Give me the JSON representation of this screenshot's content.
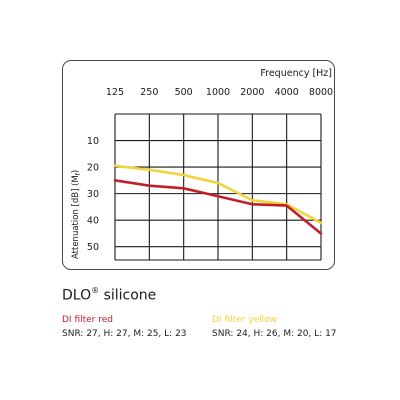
{
  "product": {
    "name": "DLO",
    "mark": "®",
    "material": "silicone"
  },
  "legend": [
    {
      "name": "DI filter red",
      "rating": "SNR: 27, H: 27, M: 25, L: 23",
      "color": "#c0202a"
    },
    {
      "name": "DI filter yellow",
      "rating": "SNR: 24, H: 26, M: 20, L: 17",
      "color": "#f2d43a"
    }
  ],
  "chart_data": {
    "type": "line",
    "xlabel": "Frequency [Hz]",
    "ylabel": "Attenuation [dB] (M",
    "ylabel_sub": "f",
    "ylabel_end": ")",
    "x": [
      "125",
      "250",
      "500",
      "1000",
      "2000",
      "4000",
      "8000"
    ],
    "yticks": [
      "10",
      "20",
      "30",
      "40",
      "50"
    ],
    "ylim": [
      0,
      55
    ],
    "y_inverted": true,
    "grid": true,
    "series": [
      {
        "name": "DI filter yellow",
        "color": "#f2d43a",
        "values": [
          19.5,
          21,
          23,
          26,
          32.5,
          34,
          41
        ]
      },
      {
        "name": "DI filter red",
        "color": "#c0202a",
        "values": [
          25,
          27,
          28,
          31,
          34,
          34.5,
          45
        ]
      }
    ]
  }
}
